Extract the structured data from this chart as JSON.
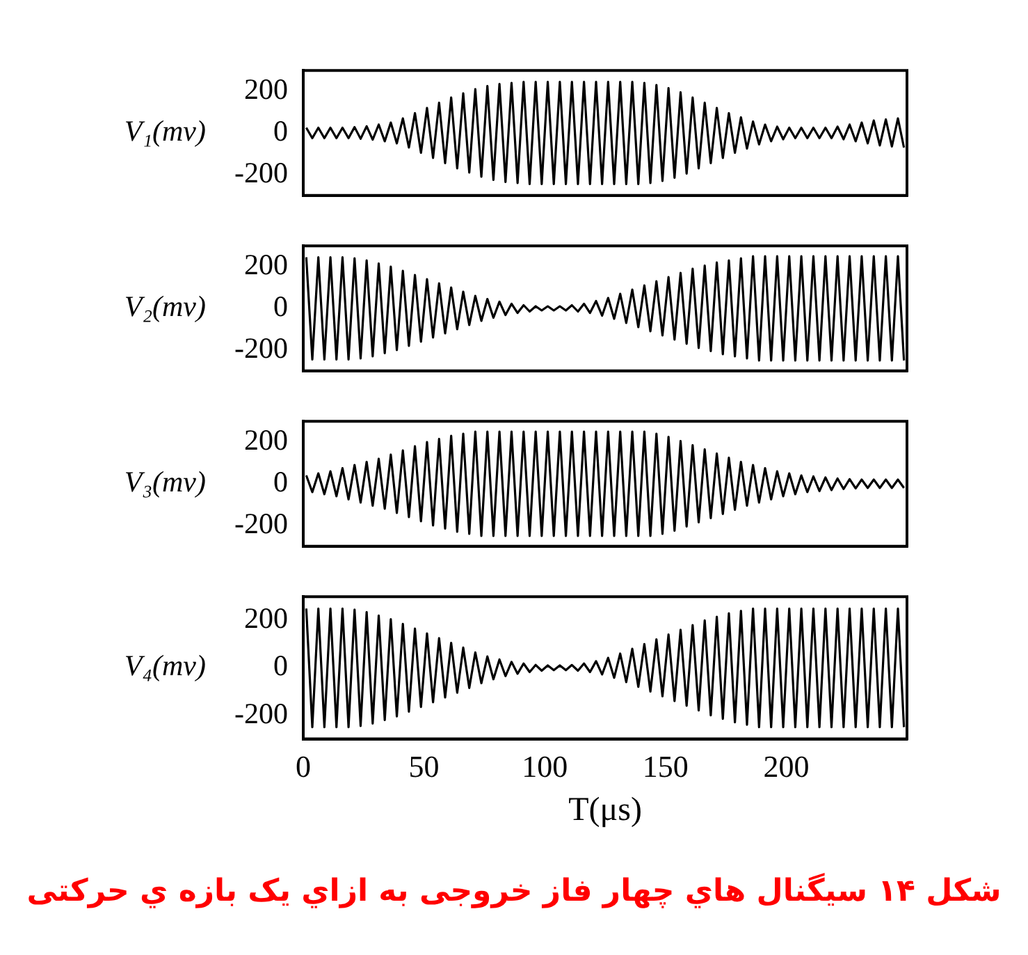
{
  "chart_data": [
    {
      "type": "line",
      "ylabel": "V₁(mv)",
      "xlim": [
        0,
        250
      ],
      "xticks": [
        0,
        50,
        100,
        150,
        200
      ],
      "ylim": [
        -300,
        300
      ],
      "yticks": [
        -200,
        0,
        200
      ],
      "tick_labels": "y",
      "grid": false,
      "legend": false,
      "marker": "none",
      "x": [
        1.25,
        3.75,
        6.25,
        8.75,
        11.25,
        13.75,
        16.25,
        18.75,
        21.25,
        23.75,
        26.25,
        28.75,
        31.25,
        33.75,
        36.25,
        38.75,
        41.25,
        43.75,
        46.25,
        48.75,
        51.25,
        53.75,
        56.25,
        58.75,
        61.25,
        63.75,
        66.25,
        68.75,
        71.25,
        73.75,
        76.25,
        78.75,
        81.25,
        83.75,
        86.25,
        88.75,
        91.25,
        93.75,
        96.25,
        98.75,
        101.25,
        103.75,
        106.25,
        108.75,
        111.25,
        113.75,
        116.25,
        118.75,
        121.25,
        123.75,
        126.25,
        128.75,
        131.25,
        133.75,
        136.25,
        138.75,
        141.25,
        143.75,
        146.25,
        148.75,
        151.25,
        153.75,
        156.25,
        158.75,
        161.25,
        163.75,
        166.25,
        168.75,
        171.25,
        173.75,
        176.25,
        178.75,
        181.25,
        183.75,
        186.25,
        188.75,
        191.25,
        193.75,
        196.25,
        198.75,
        201.25,
        203.75,
        206.25,
        208.75,
        211.25,
        213.75,
        216.25,
        218.75,
        221.25,
        223.75,
        226.25,
        228.75,
        231.25,
        233.75,
        236.25,
        238.75,
        241.25,
        243.75,
        246.25,
        248.75
      ],
      "series": [
        {
          "color": "#000000",
          "values": [
            25,
            -25,
            25,
            -25,
            25,
            -25,
            25,
            -25,
            28,
            -28,
            32,
            -32,
            40,
            -40,
            50,
            -50,
            70,
            -70,
            95,
            -95,
            120,
            -120,
            145,
            -145,
            170,
            -170,
            190,
            -190,
            210,
            -210,
            225,
            -225,
            235,
            -235,
            240,
            -240,
            245,
            -245,
            245,
            -245,
            245,
            -245,
            245,
            -245,
            245,
            -245,
            245,
            -245,
            245,
            -245,
            245,
            -245,
            245,
            -245,
            245,
            -245,
            240,
            -240,
            230,
            -230,
            215,
            -215,
            195,
            -195,
            170,
            -170,
            145,
            -145,
            120,
            -120,
            95,
            -95,
            75,
            -75,
            55,
            -55,
            40,
            -40,
            30,
            -30,
            25,
            -25,
            25,
            -25,
            25,
            -25,
            25,
            -25,
            30,
            -30,
            40,
            -40,
            50,
            -50,
            60,
            -60,
            65,
            -65,
            70,
            -70
          ]
        }
      ]
    },
    {
      "type": "line",
      "ylabel": "V₂(mv)",
      "xlim": [
        0,
        250
      ],
      "xticks": [
        0,
        50,
        100,
        150,
        200
      ],
      "ylim": [
        -300,
        300
      ],
      "yticks": [
        -200,
        0,
        200
      ],
      "tick_labels": "y",
      "grid": false,
      "legend": false,
      "marker": "none",
      "x": [
        1.25,
        3.75,
        6.25,
        8.75,
        11.25,
        13.75,
        16.25,
        18.75,
        21.25,
        23.75,
        26.25,
        28.75,
        31.25,
        33.75,
        36.25,
        38.75,
        41.25,
        43.75,
        46.25,
        48.75,
        51.25,
        53.75,
        56.25,
        58.75,
        61.25,
        63.75,
        66.25,
        68.75,
        71.25,
        73.75,
        76.25,
        78.75,
        81.25,
        83.75,
        86.25,
        88.75,
        91.25,
        93.75,
        96.25,
        98.75,
        101.25,
        103.75,
        106.25,
        108.75,
        111.25,
        113.75,
        116.25,
        118.75,
        121.25,
        123.75,
        126.25,
        128.75,
        131.25,
        133.75,
        136.25,
        138.75,
        141.25,
        143.75,
        146.25,
        148.75,
        151.25,
        153.75,
        156.25,
        158.75,
        161.25,
        163.75,
        166.25,
        168.75,
        171.25,
        173.75,
        176.25,
        178.75,
        181.25,
        183.75,
        186.25,
        188.75,
        191.25,
        193.75,
        196.25,
        198.75,
        201.25,
        203.75,
        206.25,
        208.75,
        211.25,
        213.75,
        216.25,
        218.75,
        221.25,
        223.75,
        226.25,
        228.75,
        231.25,
        233.75,
        236.25,
        238.75,
        241.25,
        243.75,
        246.25,
        248.75
      ],
      "series": [
        {
          "color": "#000000",
          "values": [
            245,
            -245,
            245,
            -245,
            245,
            -245,
            245,
            -245,
            240,
            -240,
            230,
            -230,
            215,
            -215,
            200,
            -200,
            180,
            -180,
            160,
            -160,
            140,
            -140,
            120,
            -120,
            100,
            -100,
            80,
            -80,
            60,
            -60,
            45,
            -45,
            32,
            -32,
            22,
            -22,
            15,
            -15,
            10,
            -10,
            10,
            -10,
            10,
            -10,
            15,
            -15,
            22,
            -22,
            35,
            -35,
            50,
            -50,
            70,
            -70,
            90,
            -90,
            110,
            -110,
            130,
            -130,
            150,
            -150,
            170,
            -170,
            190,
            -190,
            205,
            -205,
            220,
            -220,
            230,
            -230,
            240,
            -240,
            250,
            -250,
            250,
            -250,
            250,
            -250,
            250,
            -250,
            250,
            -250,
            250,
            -250,
            250,
            -250,
            250,
            -250,
            250,
            -250,
            250,
            -250,
            250,
            -250,
            250,
            -250,
            250,
            -250
          ]
        }
      ]
    },
    {
      "type": "line",
      "ylabel": "V₃(mv)",
      "xlim": [
        0,
        250
      ],
      "xticks": [
        0,
        50,
        100,
        150,
        200
      ],
      "ylim": [
        -300,
        300
      ],
      "yticks": [
        -200,
        0,
        200
      ],
      "tick_labels": "y",
      "grid": false,
      "legend": false,
      "marker": "none",
      "x": [
        1.25,
        3.75,
        6.25,
        8.75,
        11.25,
        13.75,
        16.25,
        18.75,
        21.25,
        23.75,
        26.25,
        28.75,
        31.25,
        33.75,
        36.25,
        38.75,
        41.25,
        43.75,
        46.25,
        48.75,
        51.25,
        53.75,
        56.25,
        58.75,
        61.25,
        63.75,
        66.25,
        68.75,
        71.25,
        73.75,
        76.25,
        78.75,
        81.25,
        83.75,
        86.25,
        88.75,
        91.25,
        93.75,
        96.25,
        98.75,
        101.25,
        103.75,
        106.25,
        108.75,
        111.25,
        113.75,
        116.25,
        118.75,
        121.25,
        123.75,
        126.25,
        128.75,
        131.25,
        133.75,
        136.25,
        138.75,
        141.25,
        143.75,
        146.25,
        148.75,
        151.25,
        153.75,
        156.25,
        158.75,
        161.25,
        163.75,
        166.25,
        168.75,
        171.25,
        173.75,
        176.25,
        178.75,
        181.25,
        183.75,
        186.25,
        188.75,
        191.25,
        193.75,
        196.25,
        198.75,
        201.25,
        203.75,
        206.25,
        208.75,
        211.25,
        213.75,
        216.25,
        218.75,
        221.25,
        223.75,
        226.25,
        228.75,
        231.25,
        233.75,
        236.25,
        238.75,
        241.25,
        243.75,
        246.25,
        248.75
      ],
      "series": [
        {
          "color": "#000000",
          "values": [
            40,
            -40,
            50,
            -50,
            60,
            -60,
            75,
            -75,
            90,
            -90,
            105,
            -105,
            120,
            -120,
            140,
            -140,
            160,
            -160,
            180,
            -180,
            200,
            -200,
            215,
            -215,
            230,
            -230,
            240,
            -240,
            250,
            -250,
            250,
            -250,
            250,
            -250,
            250,
            -250,
            250,
            -250,
            250,
            -250,
            250,
            -250,
            250,
            -250,
            250,
            -250,
            250,
            -250,
            250,
            -250,
            250,
            -250,
            250,
            -250,
            250,
            -250,
            250,
            -250,
            240,
            -240,
            225,
            -225,
            205,
            -205,
            185,
            -185,
            165,
            -165,
            145,
            -145,
            125,
            -125,
            105,
            -105,
            90,
            -90,
            75,
            -75,
            60,
            -60,
            50,
            -50,
            40,
            -40,
            35,
            -35,
            30,
            -30,
            25,
            -25,
            22,
            -22,
            20,
            -20,
            20,
            -20,
            20,
            -20,
            20,
            -20
          ]
        }
      ]
    },
    {
      "type": "line",
      "ylabel": "V₄(mv)",
      "xlabel": "T(μs)",
      "xlim": [
        0,
        250
      ],
      "xticks": [
        0,
        50,
        100,
        150,
        200
      ],
      "ylim": [
        -300,
        300
      ],
      "yticks": [
        -200,
        0,
        200
      ],
      "grid": false,
      "legend": false,
      "marker": "none",
      "annotations": [
        "شکل ۱۴ سیگنال هاي چهار فاز خروجی به ازاي یک بازه ي حرکتی"
      ],
      "x": [
        1.25,
        3.75,
        6.25,
        8.75,
        11.25,
        13.75,
        16.25,
        18.75,
        21.25,
        23.75,
        26.25,
        28.75,
        31.25,
        33.75,
        36.25,
        38.75,
        41.25,
        43.75,
        46.25,
        48.75,
        51.25,
        53.75,
        56.25,
        58.75,
        61.25,
        63.75,
        66.25,
        68.75,
        71.25,
        73.75,
        76.25,
        78.75,
        81.25,
        83.75,
        86.25,
        88.75,
        91.25,
        93.75,
        96.25,
        98.75,
        101.25,
        103.75,
        106.25,
        108.75,
        111.25,
        113.75,
        116.25,
        118.75,
        121.25,
        123.75,
        126.25,
        128.75,
        131.25,
        133.75,
        136.25,
        138.75,
        141.25,
        143.75,
        146.25,
        148.75,
        151.25,
        153.75,
        156.25,
        158.75,
        161.25,
        163.75,
        166.25,
        168.75,
        171.25,
        173.75,
        176.25,
        178.75,
        181.25,
        183.75,
        186.25,
        188.75,
        191.25,
        193.75,
        196.25,
        198.75,
        201.25,
        203.75,
        206.25,
        208.75,
        211.25,
        213.75,
        216.25,
        218.75,
        221.25,
        223.75,
        226.25,
        228.75,
        231.25,
        233.75,
        236.25,
        238.75,
        241.25,
        243.75,
        246.25,
        248.75
      ],
      "series": [
        {
          "color": "#000000",
          "values": [
            250,
            -250,
            250,
            -250,
            250,
            -250,
            250,
            -250,
            245,
            -245,
            235,
            -235,
            220,
            -220,
            205,
            -205,
            185,
            -185,
            165,
            -165,
            145,
            -145,
            125,
            -125,
            105,
            -105,
            85,
            -85,
            65,
            -65,
            48,
            -48,
            35,
            -35,
            25,
            -25,
            18,
            -18,
            12,
            -12,
            10,
            -10,
            10,
            -10,
            12,
            -12,
            18,
            -18,
            28,
            -28,
            42,
            -42,
            60,
            -60,
            80,
            -80,
            100,
            -100,
            120,
            -120,
            140,
            -140,
            160,
            -160,
            180,
            -180,
            200,
            -200,
            215,
            -215,
            230,
            -230,
            240,
            -240,
            250,
            -250,
            250,
            -250,
            250,
            -250,
            250,
            -250,
            250,
            -250,
            250,
            -250,
            250,
            -250,
            250,
            -250,
            250,
            -250,
            250,
            -250,
            250,
            -250,
            250,
            -250,
            250,
            -250
          ]
        }
      ]
    }
  ]
}
